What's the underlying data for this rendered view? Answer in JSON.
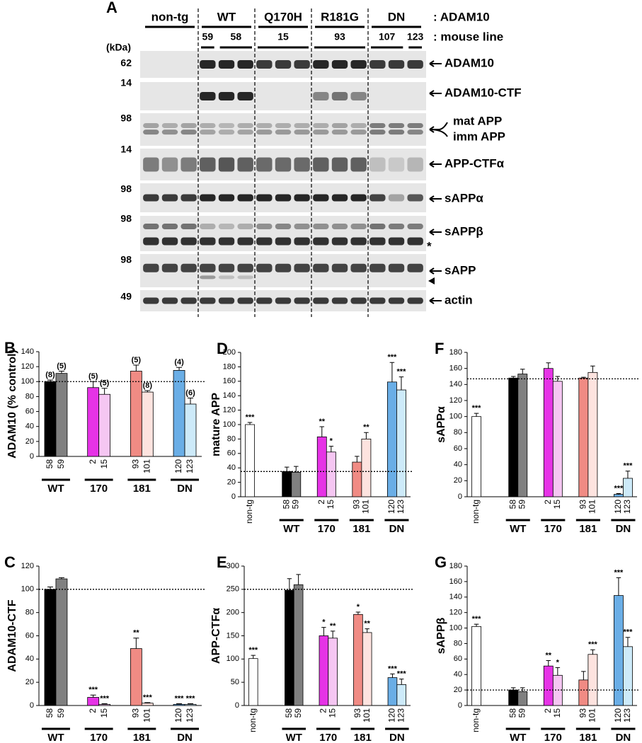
{
  "figure": {
    "panel_a": {
      "letter": "A",
      "kda_label": "(kDa)",
      "genotype_header": ": ADAM10",
      "mouse_line_header": ": mouse line",
      "genotypes": [
        "non-tg",
        "WT",
        "Q170H",
        "R181G",
        "DN"
      ],
      "mouse_lines": [
        "59",
        "58",
        "15",
        "93",
        "107",
        "123"
      ],
      "blots": [
        {
          "marker": "62",
          "label": "ADAM10"
        },
        {
          "marker": "14",
          "label": "ADAM10-CTF"
        },
        {
          "marker": "98",
          "labels": [
            "mat APP",
            "imm APP"
          ]
        },
        {
          "marker": "14",
          "label": "APP-CTFα"
        },
        {
          "marker": "98",
          "label": "sAPPα"
        },
        {
          "marker": "98",
          "label": "sAPPβ",
          "note": "*"
        },
        {
          "marker": "98",
          "label": "sAPP"
        },
        {
          "marker": "49",
          "label": "actin"
        }
      ]
    }
  },
  "chart_data": [
    {
      "type": "bar",
      "panel": "B",
      "ylabel": "ADAM10 (% control)",
      "ylim": [
        0,
        140
      ],
      "yticks": [
        0,
        20,
        40,
        60,
        80,
        100,
        120,
        140
      ],
      "reference_line": 100,
      "groups": [
        {
          "name": "WT",
          "categories": [
            "58",
            "59"
          ],
          "values": [
            100,
            111
          ],
          "errors": [
            2,
            3
          ],
          "colors": [
            "#000000",
            "#808080"
          ],
          "annotations": [
            "(8)",
            "(5)"
          ]
        },
        {
          "name": "170",
          "categories": [
            "2",
            "15"
          ],
          "values": [
            92,
            83
          ],
          "errors": [
            8,
            8
          ],
          "colors": [
            "#e633e6",
            "#f5c6f2"
          ],
          "annotations": [
            "(5)",
            "(5)"
          ]
        },
        {
          "name": "181",
          "categories": [
            "93",
            "101"
          ],
          "values": [
            114,
            86
          ],
          "errors": [
            8,
            2
          ],
          "colors": [
            "#f08b84",
            "#fde3df"
          ],
          "annotations": [
            "(5)",
            "(8)"
          ]
        },
        {
          "name": "DN",
          "categories": [
            "120",
            "123"
          ],
          "values": [
            115,
            70
          ],
          "errors": [
            4,
            8
          ],
          "colors": [
            "#6aaee6",
            "#cdeaf9"
          ],
          "annotations": [
            "(4)",
            "(6)"
          ]
        }
      ]
    },
    {
      "type": "bar",
      "panel": "D",
      "ylabel": "mature APP",
      "ylim": [
        0,
        200
      ],
      "yticks": [
        0,
        20,
        40,
        60,
        80,
        100,
        120,
        140,
        160,
        180,
        200
      ],
      "reference_line": 35,
      "control": {
        "category": "non-tg",
        "value": 100,
        "error": 3,
        "color": "#ffffff",
        "annotation": "***"
      },
      "groups": [
        {
          "name": "WT",
          "categories": [
            "58",
            "59"
          ],
          "values": [
            35,
            34
          ],
          "errors": [
            6,
            8
          ],
          "colors": [
            "#000000",
            "#808080"
          ],
          "annotations": [
            null,
            null
          ]
        },
        {
          "name": "170",
          "categories": [
            "2",
            "15"
          ],
          "values": [
            83,
            62
          ],
          "errors": [
            14,
            8
          ],
          "colors": [
            "#e633e6",
            "#f5c6f2"
          ],
          "annotations": [
            "**",
            "*"
          ]
        },
        {
          "name": "181",
          "categories": [
            "93",
            "101"
          ],
          "values": [
            48,
            80
          ],
          "errors": [
            8,
            9
          ],
          "colors": [
            "#f08b84",
            "#fde3df"
          ],
          "annotations": [
            null,
            "**"
          ]
        },
        {
          "name": "DN",
          "categories": [
            "120",
            "123"
          ],
          "values": [
            159,
            148
          ],
          "errors": [
            27,
            18
          ],
          "colors": [
            "#6aaee6",
            "#cdeaf9"
          ],
          "annotations": [
            "***",
            "***"
          ]
        }
      ]
    },
    {
      "type": "bar",
      "panel": "F",
      "ylabel": "sAPPα",
      "ylim": [
        0,
        180
      ],
      "yticks": [
        0,
        20,
        40,
        60,
        80,
        100,
        120,
        140,
        160,
        180
      ],
      "reference_line": 147,
      "control": {
        "category": "non-tg",
        "value": 100,
        "error": 4,
        "color": "#ffffff",
        "annotation": "***"
      },
      "groups": [
        {
          "name": "WT",
          "categories": [
            "58",
            "59"
          ],
          "values": [
            148,
            153
          ],
          "errors": [
            2,
            6
          ],
          "colors": [
            "#000000",
            "#808080"
          ],
          "annotations": [
            null,
            null
          ]
        },
        {
          "name": "170",
          "categories": [
            "2",
            "15"
          ],
          "values": [
            160,
            144
          ],
          "errors": [
            7,
            6
          ],
          "colors": [
            "#e633e6",
            "#f5c6f2"
          ],
          "annotations": [
            null,
            null
          ]
        },
        {
          "name": "181",
          "categories": [
            "93",
            "101"
          ],
          "values": [
            148,
            155
          ],
          "errors": [
            1,
            8
          ],
          "colors": [
            "#f08b84",
            "#fde3df"
          ],
          "annotations": [
            null,
            null
          ]
        },
        {
          "name": "DN",
          "categories": [
            "120",
            "123"
          ],
          "values": [
            3,
            23
          ],
          "errors": [
            1,
            9
          ],
          "colors": [
            "#6aaee6",
            "#cdeaf9"
          ],
          "annotations": [
            "***",
            "***"
          ]
        }
      ]
    },
    {
      "type": "bar",
      "panel": "C",
      "ylabel": "ADAM10-CTF",
      "ylim": [
        0,
        120
      ],
      "yticks": [
        0,
        20,
        40,
        60,
        80,
        100,
        120
      ],
      "reference_line": 100,
      "groups": [
        {
          "name": "WT",
          "categories": [
            "58",
            "59"
          ],
          "values": [
            100,
            109
          ],
          "errors": [
            2,
            1
          ],
          "colors": [
            "#000000",
            "#808080"
          ],
          "annotations": [
            null,
            null
          ]
        },
        {
          "name": "170",
          "categories": [
            "2",
            "15"
          ],
          "values": [
            7,
            1
          ],
          "errors": [
            2,
            0.5
          ],
          "colors": [
            "#e633e6",
            "#f5c6f2"
          ],
          "annotations": [
            "***",
            "***"
          ]
        },
        {
          "name": "181",
          "categories": [
            "93",
            "101"
          ],
          "values": [
            49,
            2
          ],
          "errors": [
            9,
            0.5
          ],
          "colors": [
            "#f08b84",
            "#fde3df"
          ],
          "annotations": [
            "**",
            "***"
          ]
        },
        {
          "name": "DN",
          "categories": [
            "120",
            "123"
          ],
          "values": [
            1,
            1
          ],
          "errors": [
            0.5,
            0.5
          ],
          "colors": [
            "#6aaee6",
            "#cdeaf9"
          ],
          "annotations": [
            "***",
            "***"
          ]
        }
      ]
    },
    {
      "type": "bar",
      "panel": "E",
      "ylabel": "APP-CTFα",
      "ylim": [
        0,
        300
      ],
      "yticks": [
        0,
        50,
        100,
        150,
        200,
        250,
        300
      ],
      "reference_line": 250,
      "control": {
        "category": "non-tg",
        "value": 101,
        "error": 7,
        "color": "#ffffff",
        "annotation": "***"
      },
      "groups": [
        {
          "name": "WT",
          "categories": [
            "58",
            "59"
          ],
          "values": [
            248,
            260
          ],
          "errors": [
            25,
            22
          ],
          "colors": [
            "#000000",
            "#808080"
          ],
          "annotations": [
            null,
            null
          ]
        },
        {
          "name": "170",
          "categories": [
            "2",
            "15"
          ],
          "values": [
            150,
            145
          ],
          "errors": [
            18,
            15
          ],
          "colors": [
            "#e633e6",
            "#f5c6f2"
          ],
          "annotations": [
            "*",
            "**"
          ]
        },
        {
          "name": "181",
          "categories": [
            "93",
            "101"
          ],
          "values": [
            196,
            157
          ],
          "errors": [
            5,
            8
          ],
          "colors": [
            "#f08b84",
            "#fde3df"
          ],
          "annotations": [
            "*",
            "**"
          ]
        },
        {
          "name": "DN",
          "categories": [
            "120",
            "123"
          ],
          "values": [
            60,
            45
          ],
          "errors": [
            8,
            12
          ],
          "colors": [
            "#6aaee6",
            "#cdeaf9"
          ],
          "annotations": [
            "***",
            "***"
          ]
        }
      ]
    },
    {
      "type": "bar",
      "panel": "G",
      "ylabel": "sAPPβ",
      "ylim": [
        0,
        180
      ],
      "yticks": [
        0,
        20,
        40,
        60,
        80,
        100,
        120,
        140,
        160,
        180
      ],
      "reference_line": 20,
      "control": {
        "category": "non-tg",
        "value": 102,
        "error": 3,
        "color": "#ffffff",
        "annotation": "***"
      },
      "groups": [
        {
          "name": "WT",
          "categories": [
            "58",
            "59"
          ],
          "values": [
            20,
            18
          ],
          "errors": [
            3,
            5
          ],
          "colors": [
            "#000000",
            "#808080"
          ],
          "annotations": [
            null,
            null
          ]
        },
        {
          "name": "170",
          "categories": [
            "2",
            "15"
          ],
          "values": [
            51,
            39
          ],
          "errors": [
            7,
            10
          ],
          "colors": [
            "#e633e6",
            "#f5c6f2"
          ],
          "annotations": [
            "**",
            "*"
          ]
        },
        {
          "name": "181",
          "categories": [
            "93",
            "101"
          ],
          "values": [
            33,
            66
          ],
          "errors": [
            11,
            6
          ],
          "colors": [
            "#f08b84",
            "#fde3df"
          ],
          "annotations": [
            null,
            "***"
          ]
        },
        {
          "name": "DN",
          "categories": [
            "120",
            "123"
          ],
          "values": [
            142,
            76
          ],
          "errors": [
            23,
            12
          ],
          "colors": [
            "#6aaee6",
            "#cdeaf9"
          ],
          "annotations": [
            "***",
            "***"
          ]
        }
      ]
    }
  ]
}
